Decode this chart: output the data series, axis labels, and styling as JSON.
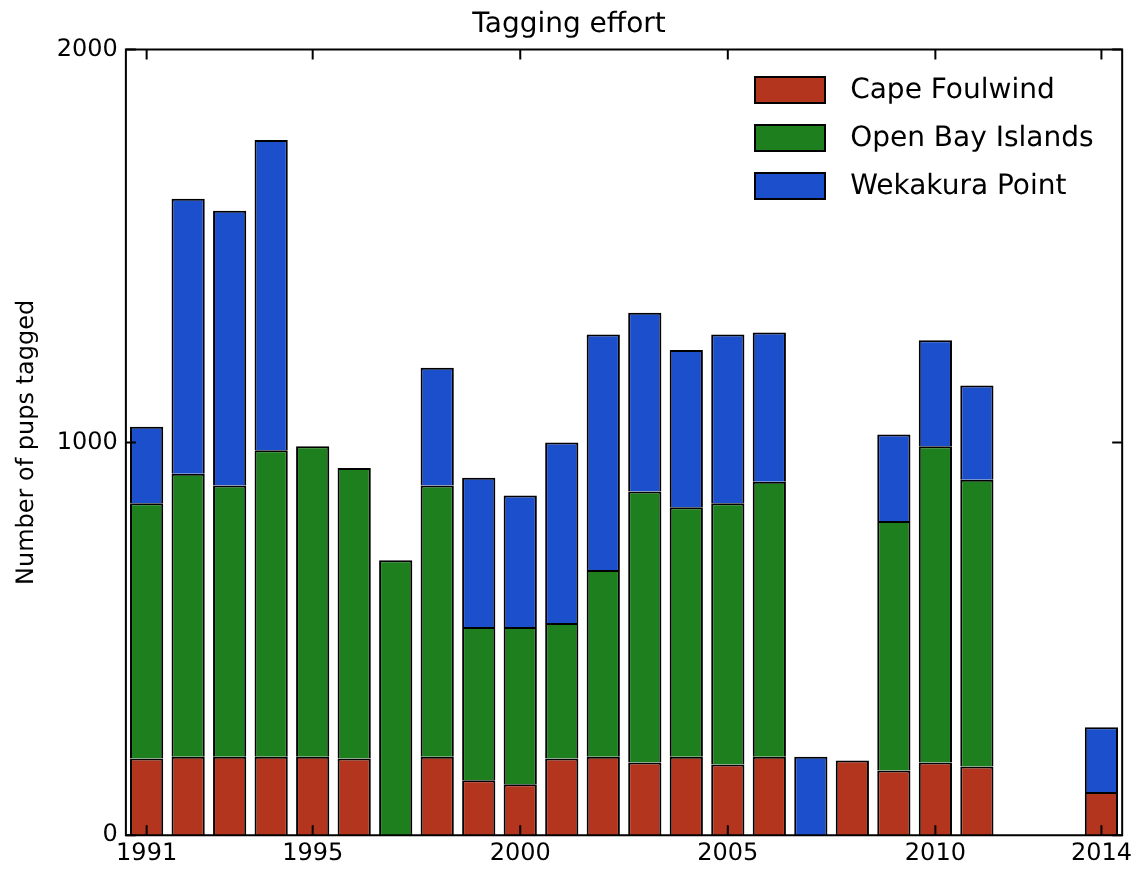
{
  "chart_data": {
    "type": "bar",
    "title": "Tagging effort",
    "ylabel": "Number of pups tagged",
    "stacked": true,
    "categories": [
      "1991",
      null,
      null,
      null,
      "1995",
      null,
      null,
      null,
      null,
      "2000",
      null,
      null,
      null,
      null,
      "2005",
      null,
      null,
      null,
      null,
      "2010",
      null,
      null,
      null,
      "2014"
    ],
    "series": [
      {
        "name": "Cape Foulwind",
        "color": "#b3351d",
        "values": [
          195,
          200,
          200,
          200,
          200,
          195,
          0,
          200,
          140,
          130,
          195,
          200,
          185,
          200,
          180,
          200,
          0,
          190,
          165,
          185,
          175,
          0,
          0,
          110
        ]
      },
      {
        "name": "Open Bay Islands",
        "color": "#1d7f1d",
        "values": [
          650,
          720,
          690,
          780,
          790,
          740,
          700,
          690,
          390,
          400,
          345,
          475,
          690,
          635,
          665,
          700,
          0,
          0,
          635,
          805,
          730,
          0,
          0,
          0
        ]
      },
      {
        "name": "Wekakura Point",
        "color": "#1c4fcb",
        "values": [
          195,
          700,
          700,
          790,
          0,
          0,
          0,
          300,
          380,
          335,
          460,
          600,
          455,
          400,
          430,
          380,
          200,
          0,
          220,
          270,
          240,
          0,
          0,
          165
        ]
      }
    ],
    "ylim": [
      0,
      2000
    ],
    "yticks": [
      0,
      1000,
      2000
    ],
    "grid": false,
    "legend": "top right"
  }
}
